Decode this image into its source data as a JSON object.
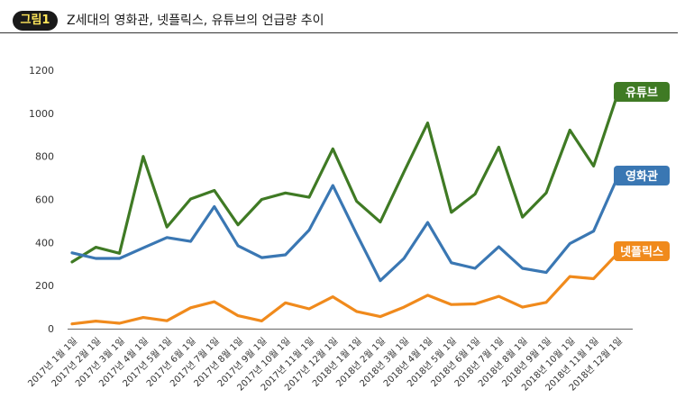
{
  "figure": {
    "label": "그림1",
    "title": "Z세대의 영화관, 넷플릭스, 유튜브의 언급량 추이"
  },
  "chart_data": {
    "type": "line",
    "title": "Z세대의 영화관, 넷플릭스, 유튜브의 언급량 추이",
    "xlabel": "",
    "ylabel": "",
    "ylim": [
      0,
      1200
    ],
    "yticks": [
      0,
      200,
      400,
      600,
      800,
      1000,
      1200
    ],
    "grid": false,
    "legend": "series labels at line ends (right)",
    "categories": [
      "2017년 1월 1일",
      "2017년 2월 1일",
      "2017년 3월 1일",
      "2017년 4월 1일",
      "2017년 5월 1일",
      "2017년 6월 1일",
      "2017년 7월 1일",
      "2017년 8월 1일",
      "2017년 9월 1일",
      "2017년 10월 1일",
      "2017년 11월 1일",
      "2017년 12월 1일",
      "2018년 1월 1일",
      "2018년 2월 1일",
      "2018년 3월 1일",
      "2018년 4월 1일",
      "2018년 5월 1일",
      "2018년 6월 1일",
      "2018년 7월 1일",
      "2018년 8월 1일",
      "2018년 9월 1일",
      "2018년 10월 1일",
      "2018년 11월 1일",
      "2018년 12월 1일"
    ],
    "series": [
      {
        "name": "유튜브",
        "color": "#3f7a24",
        "values": [
          310,
          378,
          350,
          800,
          472,
          602,
          642,
          482,
          600,
          630,
          610,
          835,
          592,
          495,
          728,
          955,
          540,
          625,
          843,
          518,
          630,
          922,
          755,
          1085
        ]
      },
      {
        "name": "영화관",
        "color": "#3a77b3",
        "values": [
          352,
          326,
          326,
          375,
          423,
          405,
          567,
          385,
          330,
          343,
          458,
          665,
          440,
          223,
          326,
          493,
          306,
          280,
          380,
          280,
          261,
          395,
          453,
          700
        ]
      },
      {
        "name": "넷플릭스",
        "color": "#f08a1c",
        "values": [
          22,
          35,
          25,
          52,
          37,
          97,
          125,
          60,
          36,
          120,
          92,
          148,
          80,
          56,
          100,
          155,
          112,
          115,
          150,
          100,
          122,
          242,
          232,
          348
        ]
      }
    ]
  }
}
